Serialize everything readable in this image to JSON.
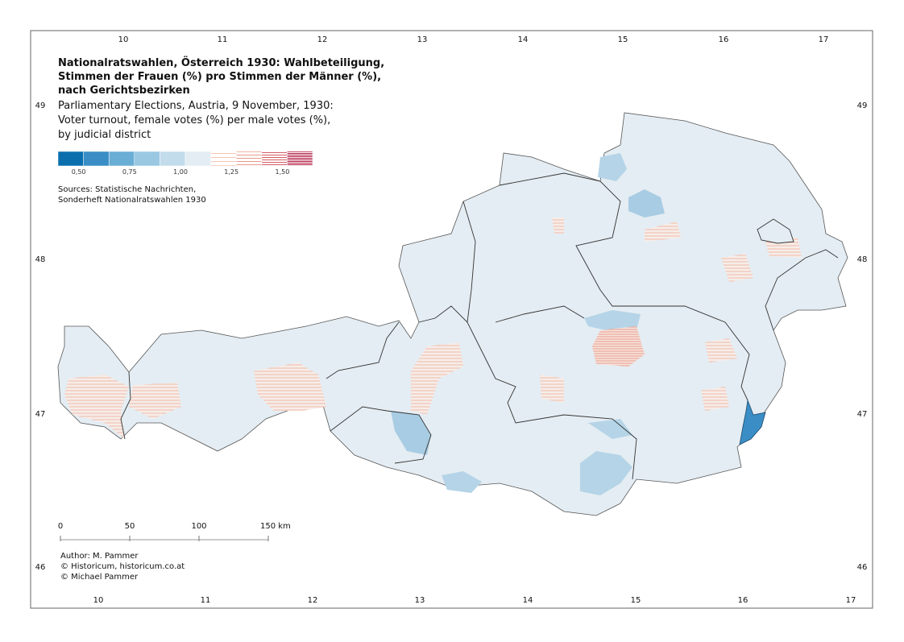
{
  "map": {
    "title": [
      "Nationalratswahlen, Österreich 1930: Wahlbeteiligung,",
      "Stimmen der Frauen (%) pro Stimmen der Männer (%),",
      "nach Gerichtsbezirken"
    ],
    "subtitle": [
      "Parliamentary Elections, Austria, 9 November, 1930:",
      "Voter turnout, female votes (%) per male votes (%),",
      "by judicial district"
    ],
    "legend": {
      "swatches": [
        {
          "color": "#0b6fae",
          "hatch": false
        },
        {
          "color": "#3a8ec5",
          "hatch": false
        },
        {
          "color": "#6aaed5",
          "hatch": false
        },
        {
          "color": "#9ac8e2",
          "hatch": false
        },
        {
          "color": "#c2dcec",
          "hatch": false
        },
        {
          "color": "#e3edf3",
          "hatch": false
        },
        {
          "color": "#f2c6b6",
          "hatch": true
        },
        {
          "color": "#e99a8c",
          "hatch": true
        },
        {
          "color": "#d35d66",
          "hatch": true
        },
        {
          "color": "#b0163e",
          "hatch": true
        }
      ],
      "labels": [
        "0,50",
        "0,75",
        "1,00",
        "1,25",
        "1,50"
      ]
    },
    "sources": [
      "Sources: Statistische Nachrichten,",
      "Sonderheft Nationalratswahlen 1930"
    ],
    "scale_labels": [
      "0",
      "50",
      "100",
      "150 km"
    ],
    "credits": [
      "Author: M. Pammer",
      "© Historicum, historicum.co.at",
      "© Michael Pammer"
    ],
    "longitudes": [
      10,
      11,
      12,
      13,
      14,
      15,
      16,
      17
    ],
    "latitudes": [
      49,
      48,
      47,
      46
    ]
  }
}
